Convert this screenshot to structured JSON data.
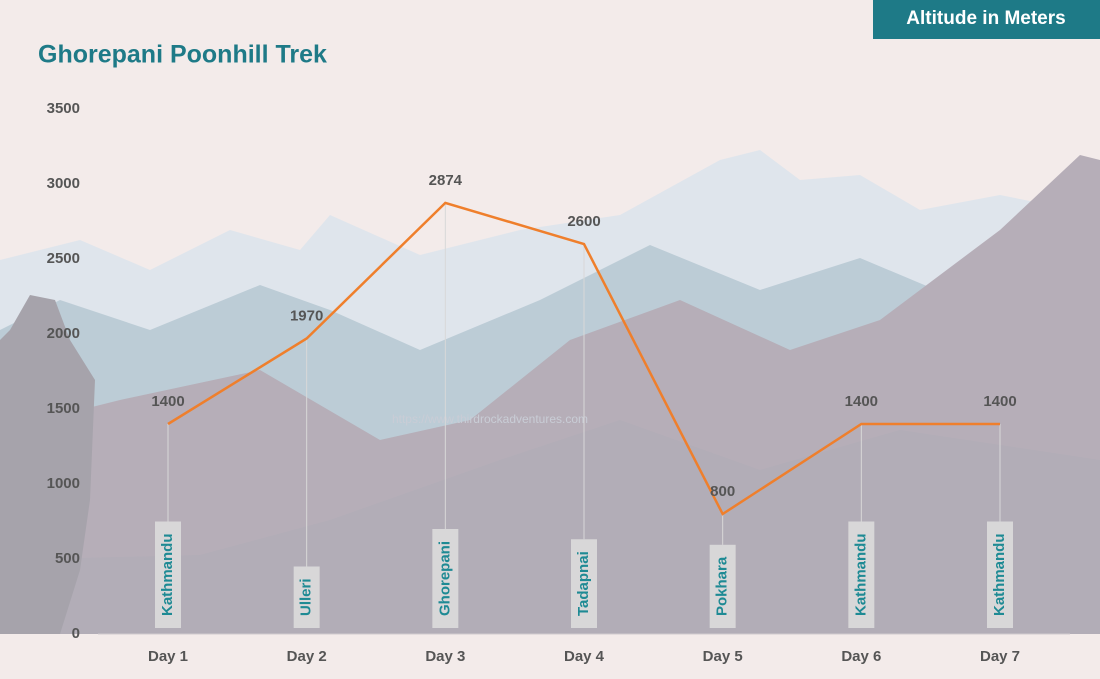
{
  "chart_data": {
    "type": "line",
    "title": "Ghorepani Poonhill Trek",
    "ylabel": "Altitude in Meters",
    "watermark": "https://www.thirdrockadventures.com",
    "categories": [
      "Day 1",
      "Day 2",
      "Day 3",
      "Day 4",
      "Day 5",
      "Day 6",
      "Day 7"
    ],
    "locations": [
      "Kathmandu",
      "Ulleri",
      "Ghorepani",
      "Tadapnai",
      "Pokhara",
      "Kathmandu",
      "Kathmandu"
    ],
    "values": [
      1400,
      1970,
      2874,
      2600,
      800,
      1400,
      1400
    ],
    "color": "#ef7f2c",
    "ylim": [
      0,
      3500
    ],
    "yticks": [
      0,
      500,
      1000,
      1500,
      2000,
      2500,
      3000,
      3500
    ]
  }
}
